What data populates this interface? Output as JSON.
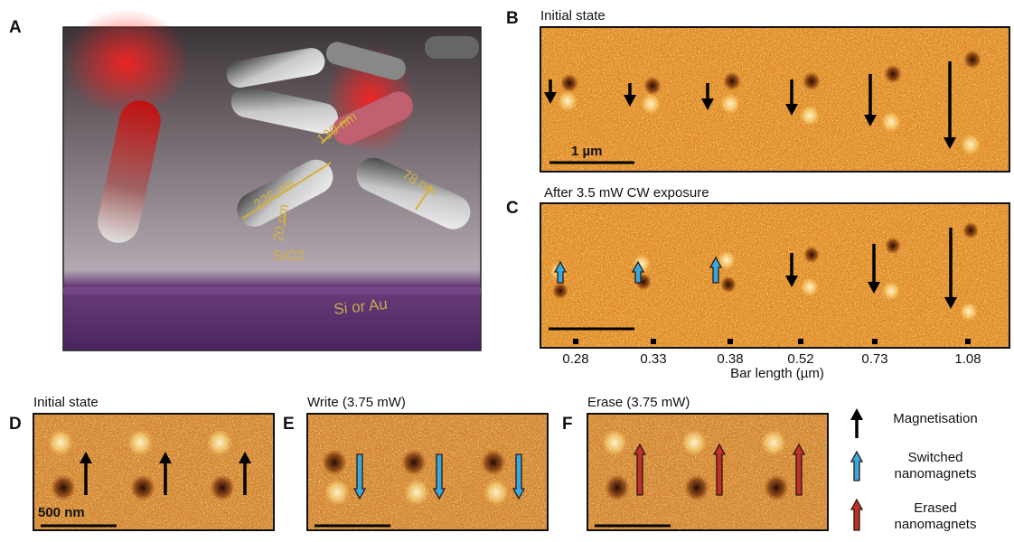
{
  "panel_labels": [
    "A",
    "B",
    "C",
    "D",
    "E",
    "F"
  ],
  "panel_a": {
    "dimensions": [
      "130 nm",
      "226 nm",
      "78 nm",
      "20 nm"
    ],
    "oxide_layer": "SiO2",
    "base_layer": "Si or Au"
  },
  "panel_b": {
    "title": "Initial state",
    "scale_bar": "1 µm"
  },
  "panel_c": {
    "title": "After 3.5 mW CW exposure",
    "bar_lengths": [
      0.28,
      0.33,
      0.38,
      0.52,
      0.73,
      1.08
    ],
    "axis_label": "Bar length (µm)"
  },
  "panel_d": {
    "title": "Initial state",
    "scale_bar": "500 nm"
  },
  "panel_e": {
    "title": "Write (3.75 mW)"
  },
  "panel_f": {
    "title": "Erase (3.75 mW)"
  },
  "legend": [
    "Magnetisation",
    "Switched nanomagnets",
    "Erased nanomagnets"
  ]
}
